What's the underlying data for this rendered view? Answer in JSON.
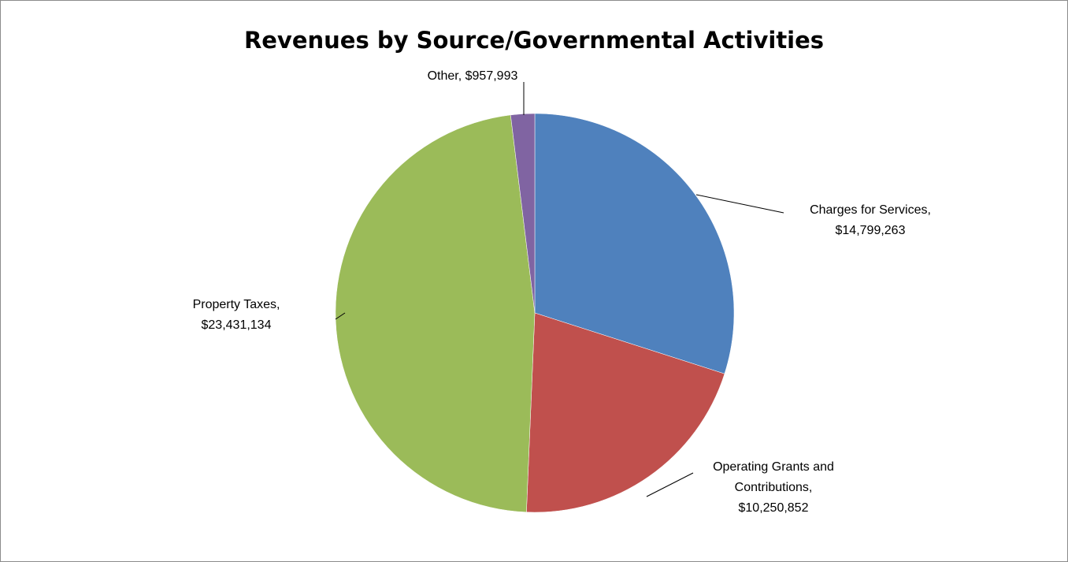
{
  "chart_data": {
    "type": "pie",
    "title": "Revenues by Source/Governmental Activities",
    "slices": [
      {
        "label": "Charges for Services",
        "value": 14799263,
        "value_text": "$14,799,263",
        "color": "#4f81bd"
      },
      {
        "label": "Operating Grants and Contributions",
        "value": 10250852,
        "value_text": "$10,250,852",
        "color": "#c0504d"
      },
      {
        "label": "Property Taxes",
        "value": 23431134,
        "value_text": "$23,431,134",
        "color": "#9bbb59"
      },
      {
        "label": "Other",
        "value": 957993,
        "value_text": "$957,993",
        "color": "#8064a2"
      }
    ],
    "data_labels": [
      {
        "lines": [
          "Charges for Services,",
          "$14,799,263"
        ]
      },
      {
        "lines": [
          "Operating Grants and",
          "Contributions,",
          "$10,250,852"
        ]
      },
      {
        "lines": [
          "Property Taxes,",
          "$23,431,134"
        ]
      },
      {
        "lines": [
          "Other, $957,993"
        ]
      }
    ],
    "legend": "none"
  }
}
